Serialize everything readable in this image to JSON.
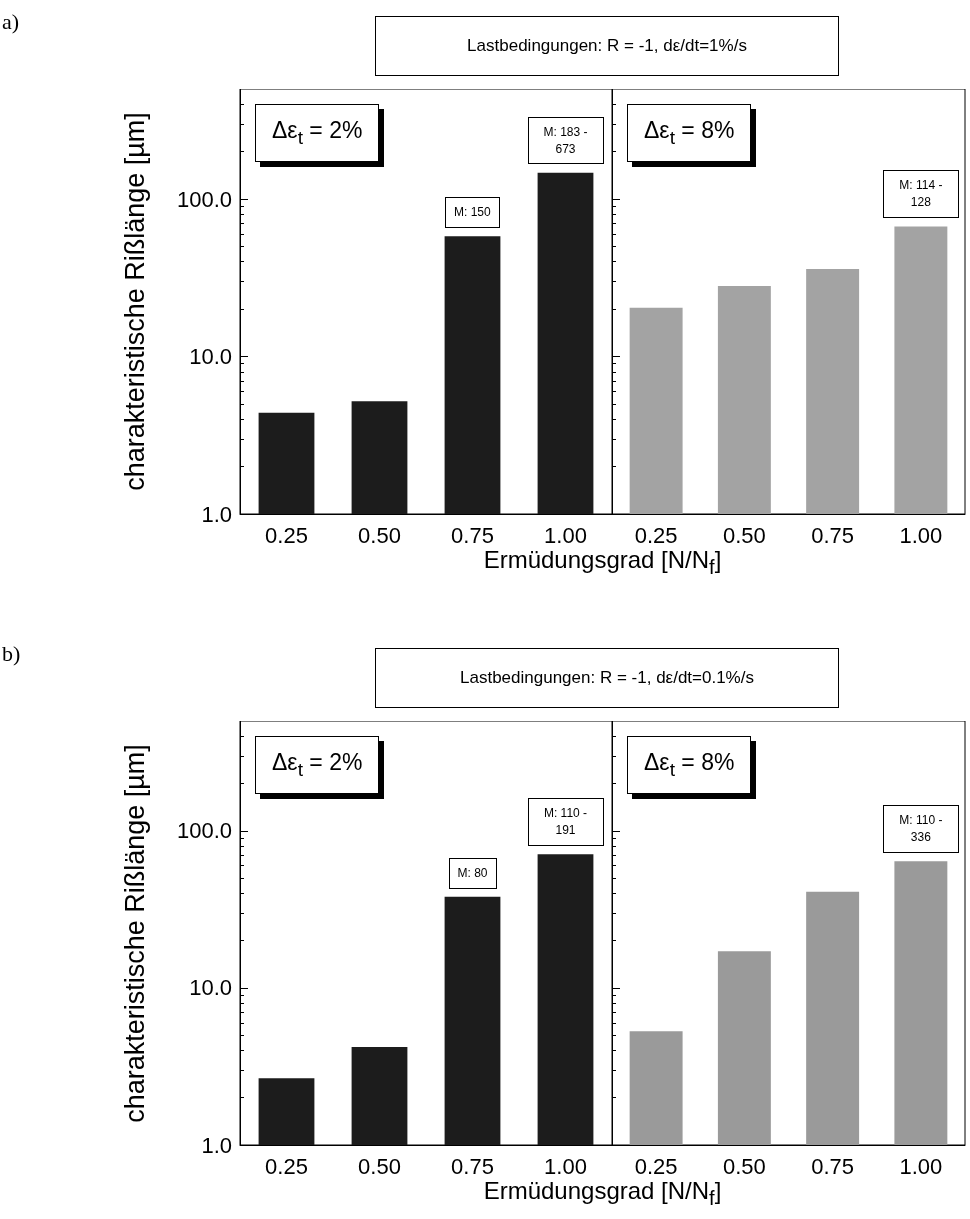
{
  "chart_data": [
    {
      "type": "bar",
      "title": "Lastbedingungen: R = -1, dε/dt=1%/s",
      "xlabel": "Ermüdungsgrad [N/N$_{f}$]",
      "ylabel": "charakteristische Rißlänge [µm]",
      "categories": [
        "0.25",
        "0.50",
        "0.75",
        "1.00"
      ],
      "values": [
        4.4,
        5.2,
        58,
        147
      ],
      "color": "#1c1c1c",
      "log": true,
      "ylim": [
        1,
        500
      ],
      "yticks": [
        {
          "value": 1,
          "label": "1.0"
        },
        {
          "value": 10,
          "label": "10.0"
        },
        {
          "value": 100,
          "label": "100.0"
        }
      ],
      "annotations": [
        "a)",
        "Δε$_{t}$ = 2%",
        {
          "text": "M: 150",
          "x": "0.75",
          "y": 58
        },
        {
          "text": "M: 183 - 673",
          "x": "1.00",
          "y": 147
        }
      ]
    },
    {
      "type": "bar",
      "categories": [
        "0.25",
        "0.50",
        "0.75",
        "1.00"
      ],
      "values": [
        20.4,
        28,
        36,
        67
      ],
      "color": "#a3a3a3",
      "log": true,
      "ylim": [
        1,
        500
      ],
      "yticks": [
        {
          "value": 1,
          "label": null
        },
        {
          "value": 10,
          "label": null
        },
        {
          "value": 100,
          "label": null
        }
      ],
      "tick_labels": "x",
      "annotations": [
        "Δε$_{t}$ = 8%",
        {
          "text": "M: 114 - 128",
          "x": "1.00",
          "y": 67
        }
      ]
    },
    {
      "type": "bar",
      "title": "Lastbedingungen: R = -1, dε/dt=0.1%/s",
      "xlabel": "Ermüdungsgrad [N/N$_{f}$]",
      "ylabel": "charakteristische Rißlänge [µm]",
      "categories": [
        "0.25",
        "0.50",
        "0.75",
        "1.00"
      ],
      "values": [
        2.66,
        4.2,
        38,
        71
      ],
      "color": "#1c1c1c",
      "log": true,
      "ylim": [
        1,
        500
      ],
      "yticks": [
        {
          "value": 1,
          "label": "1.0"
        },
        {
          "value": 10,
          "label": "10.0"
        },
        {
          "value": 100,
          "label": "100.0"
        }
      ],
      "annotations": [
        "b)",
        "Δε$_{t}$ = 2%",
        {
          "text": "M: 80",
          "x": "0.75",
          "y": 38
        },
        {
          "text": "M: 110 - 191",
          "x": "1.00",
          "y": 71
        }
      ]
    },
    {
      "type": "bar",
      "categories": [
        "0.25",
        "0.50",
        "0.75",
        "1.00"
      ],
      "values": [
        5.3,
        17.1,
        41,
        64
      ],
      "color": "#9a9a9a",
      "log": true,
      "ylim": [
        1,
        500
      ],
      "yticks": [
        {
          "value": 1,
          "label": null
        },
        {
          "value": 10,
          "label": null
        },
        {
          "value": 100,
          "label": null
        }
      ],
      "tick_labels": "x",
      "annotations": [
        "Δε$_{t}$ = 8%",
        {
          "text": "M: 110 - 336",
          "x": "1.00",
          "y": 64
        }
      ]
    }
  ]
}
